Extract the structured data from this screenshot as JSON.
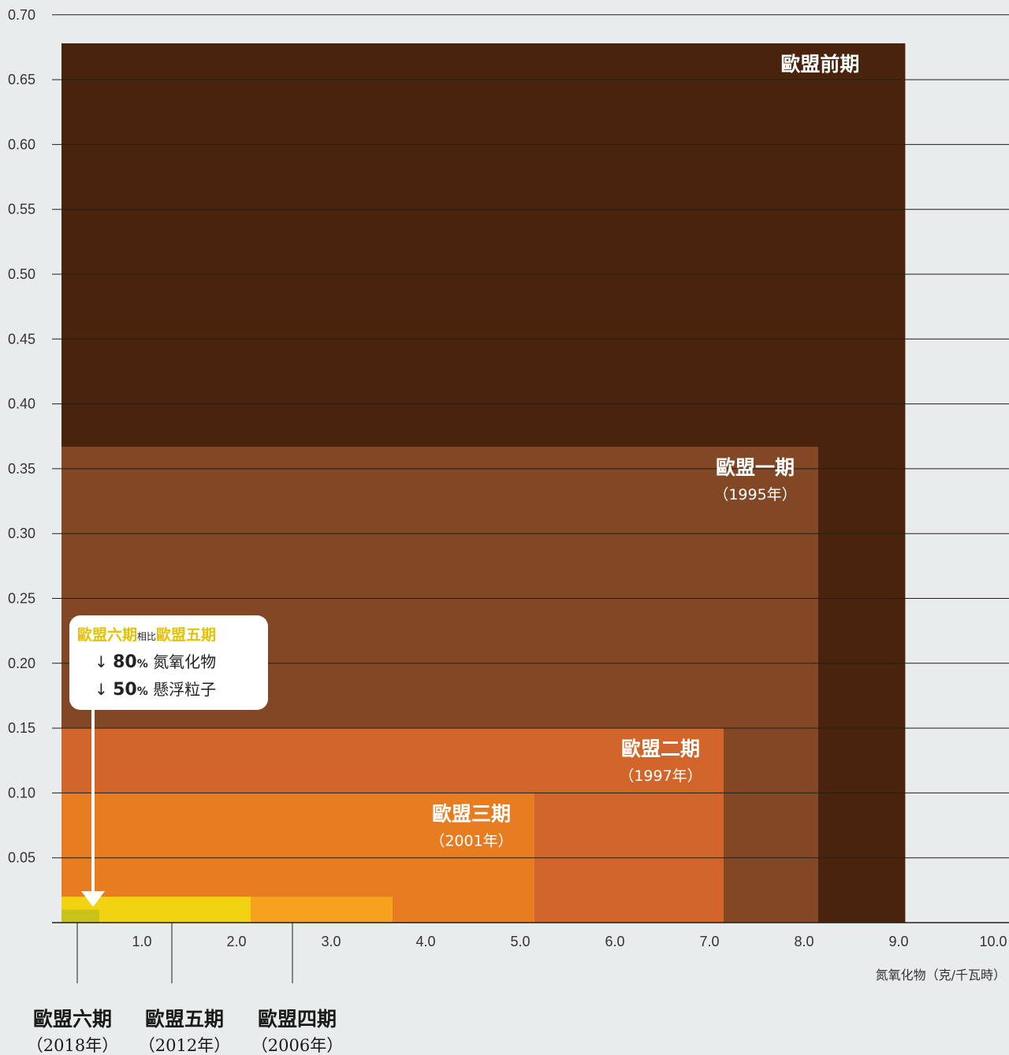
{
  "chart_data": {
    "type": "area",
    "xlabel": "氮氧化物（克/千瓦時）",
    "ylabel": "",
    "xlim": [
      0,
      10
    ],
    "ylim": [
      0,
      0.7
    ],
    "x_ticks": [
      "1.0",
      "2.0",
      "3.0",
      "4.0",
      "5.0",
      "6.0",
      "7.0",
      "8.0",
      "9.0",
      "10.0"
    ],
    "y_ticks": [
      "0.05",
      "0.10",
      "0.15",
      "0.20",
      "0.25",
      "0.30",
      "0.35",
      "0.40",
      "0.45",
      "0.50",
      "0.55",
      "0.60",
      "0.65",
      "0.70"
    ],
    "grid": true,
    "standards": [
      {
        "name": "歐盟前期",
        "year": "",
        "nox": 8.92,
        "pm": 0.678,
        "color": "#4a230c",
        "label_pos": "inside-top-right"
      },
      {
        "name": "歐盟一期",
        "year": "（1995年）",
        "nox": 8.0,
        "pm": 0.367,
        "color": "#824826",
        "label_pos": "inside-top-right"
      },
      {
        "name": "歐盟二期",
        "year": "（1997年）",
        "nox": 7.0,
        "pm": 0.15,
        "color": "#d2662a",
        "label_pos": "inside-top-right"
      },
      {
        "name": "歐盟三期",
        "year": "（2001年）",
        "nox": 5.0,
        "pm": 0.1,
        "color": "#e77c20",
        "label_pos": "inside-top-right"
      },
      {
        "name": "歐盟四期",
        "year": "（2006年）",
        "nox": 3.5,
        "pm": 0.02,
        "color": "#f6a21e",
        "label_pos": "below-axis"
      },
      {
        "name": "歐盟五期",
        "year": "（2012年）",
        "nox": 2.0,
        "pm": 0.02,
        "color": "#f2d312",
        "label_pos": "below-axis"
      },
      {
        "name": "歐盟六期",
        "year": "（2018年）",
        "nox": 0.4,
        "pm": 0.01,
        "color": "#c8c21a",
        "label_pos": "below-axis"
      }
    ],
    "callout": {
      "newer": "歐盟六期",
      "compare": "相比",
      "older": "歐盟五期",
      "rows": [
        {
          "arrow": "↓",
          "value": "80",
          "unit": "%",
          "label": "氮氧化物"
        },
        {
          "arrow": "↓",
          "value": "50",
          "unit": "%",
          "label": "懸浮粒子"
        }
      ]
    }
  }
}
